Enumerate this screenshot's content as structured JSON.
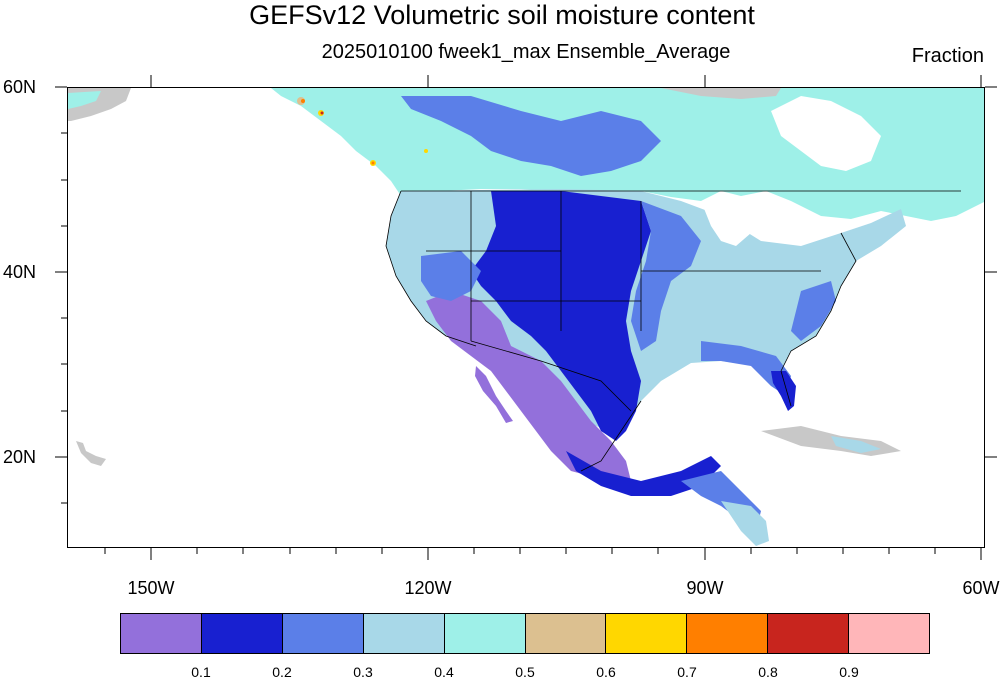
{
  "title": "GEFSv12 Volumetric soil moisture content",
  "subtitle": "2025010100 fweek1_max Ensemble_Average",
  "units": "Fraction",
  "lat_labels": [
    "60N",
    "40N",
    "20N"
  ],
  "lon_labels": [
    "150W",
    "120W",
    "90W",
    "60W"
  ],
  "colorbar": {
    "colors": [
      "#9370db",
      "#1820d0",
      "#5b7fe8",
      "#a8d8e8",
      "#9ef0e8",
      "#dcc090",
      "#ffd700",
      "#ff7f00",
      "#c8251e",
      "#ffb6b9"
    ],
    "labels": [
      "0.1",
      "0.2",
      "0.3",
      "0.4",
      "0.5",
      "0.6",
      "0.7",
      "0.8",
      "0.9"
    ]
  },
  "map": {
    "land_nodata_color": "#c8c8c8",
    "ocean_color": "#ffffff"
  }
}
